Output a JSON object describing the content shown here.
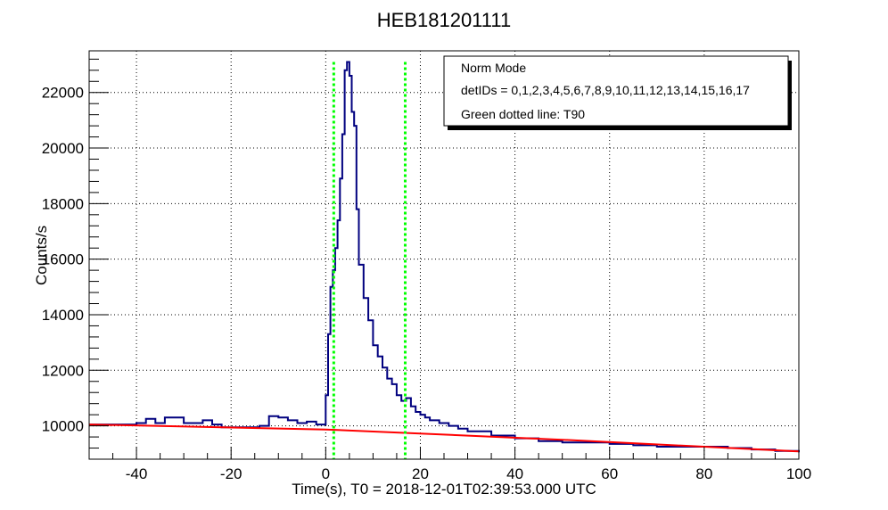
{
  "chart_data": {
    "type": "line",
    "title": "HEB181201111",
    "xlabel": "Time(s), T0 = 2018-12-01T02:39:53.000 UTC",
    "ylabel": "Counts/s",
    "xlim": [
      -50,
      100
    ],
    "ylim": [
      8800,
      23500
    ],
    "x_ticks": [
      -40,
      -20,
      0,
      20,
      40,
      60,
      80,
      100
    ],
    "y_ticks": [
      10000,
      12000,
      14000,
      16000,
      18000,
      20000,
      22000
    ],
    "grid": true,
    "legend": {
      "placement": "top-right",
      "entries": [
        "Norm Mode",
        "detIDs = 0,1,2,3,4,5,6,7,8,9,10,11,12,13,14,15,16,17",
        "Green dotted line: T90"
      ]
    },
    "series": [
      {
        "type": "step",
        "color": "#00007f",
        "x": [
          -50,
          -40,
          -38,
          -36,
          -34,
          -30,
          -26,
          -24,
          -22,
          -18,
          -14,
          -12,
          -10,
          -8,
          -6,
          -4,
          -2,
          0,
          0.5,
          1,
          1.5,
          2,
          2.5,
          3,
          3.5,
          4,
          4.5,
          5,
          5.5,
          6,
          6.5,
          7,
          8,
          9,
          10,
          11,
          12,
          13,
          14,
          15,
          16,
          17,
          18,
          19,
          20,
          21,
          22,
          24,
          26,
          28,
          30,
          35,
          40,
          45,
          50,
          55,
          60,
          65,
          70,
          75,
          80,
          85,
          90,
          95,
          100
        ],
        "y": [
          10050,
          10100,
          10250,
          10100,
          10300,
          10100,
          10200,
          10050,
          9950,
          9950,
          10000,
          10350,
          10300,
          10200,
          10100,
          10150,
          10050,
          11100,
          13300,
          15000,
          15600,
          16400,
          17400,
          18900,
          20500,
          22800,
          23100,
          22600,
          21300,
          20800,
          17800,
          15800,
          14600,
          13800,
          12900,
          12500,
          12100,
          11700,
          11500,
          11100,
          10900,
          11000,
          10700,
          10500,
          10400,
          10300,
          10200,
          10100,
          10000,
          9900,
          9800,
          9650,
          9550,
          9450,
          9400,
          9400,
          9350,
          9300,
          9250,
          9250,
          9250,
          9200,
          9150,
          9100,
          9050
        ]
      },
      {
        "type": "line",
        "color": "#ff0000",
        "x": [
          -50,
          0,
          50,
          100
        ],
        "y": [
          10050,
          9870,
          9500,
          9080
        ]
      }
    ],
    "vlines": [
      {
        "x": 1.7,
        "color": "#00ff00",
        "style": "dotted"
      },
      {
        "x": 16.8,
        "color": "#00ff00",
        "style": "dotted"
      }
    ]
  }
}
